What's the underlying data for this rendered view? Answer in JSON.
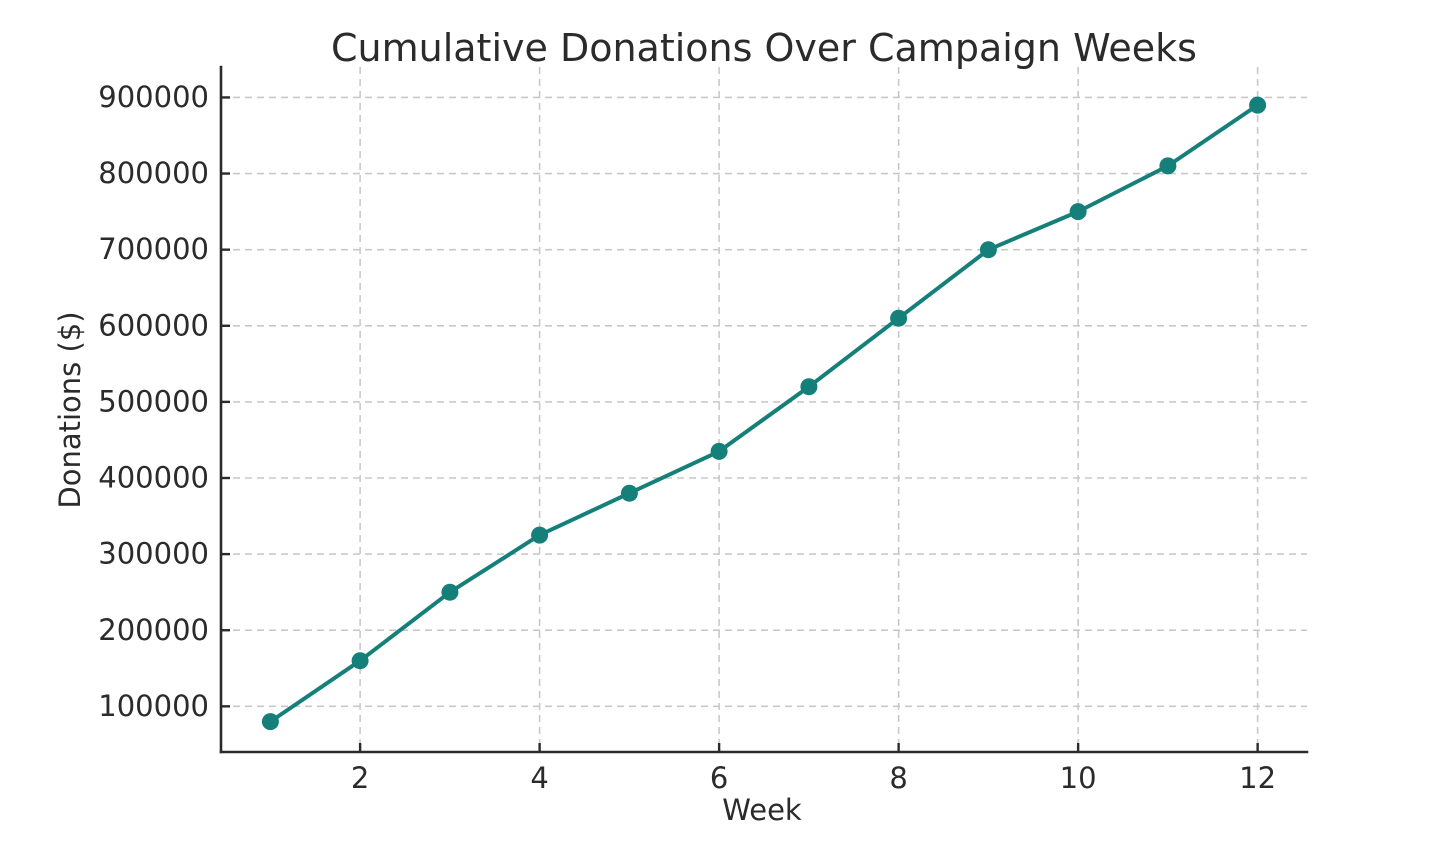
{
  "chart_data": {
    "type": "line",
    "title": "Cumulative Donations Over Campaign Weeks",
    "xlabel": "Week",
    "ylabel": "Donations ($)",
    "x": [
      1,
      2,
      3,
      4,
      5,
      6,
      7,
      8,
      9,
      10,
      11,
      12
    ],
    "values": [
      80000,
      160000,
      250000,
      325000,
      380000,
      435000,
      520000,
      610000,
      700000,
      750000,
      810000,
      890000
    ],
    "xlim": [
      0.45,
      12.55
    ],
    "ylim": [
      40000,
      940000
    ],
    "xticks": [
      2,
      4,
      6,
      8,
      10,
      12
    ],
    "xticklabels": [
      "2",
      "4",
      "6",
      "8",
      "10",
      "12"
    ],
    "yticks": [
      100000,
      200000,
      300000,
      400000,
      500000,
      600000,
      700000,
      800000,
      900000
    ],
    "yticklabels": [
      "100000",
      "200000",
      "300000",
      "400000",
      "500000",
      "600000",
      "700000",
      "800000",
      "900000"
    ],
    "grid": true,
    "grid_style": "dashed",
    "legend": false,
    "marker": "circle",
    "marker_radius": 8.5,
    "colors": {
      "line": "#15807a",
      "marker": "#15807a",
      "grid": "#c9c9c9",
      "axis": "#2b2b2b",
      "text": "#2b2b2b",
      "background": "#ffffff"
    }
  }
}
